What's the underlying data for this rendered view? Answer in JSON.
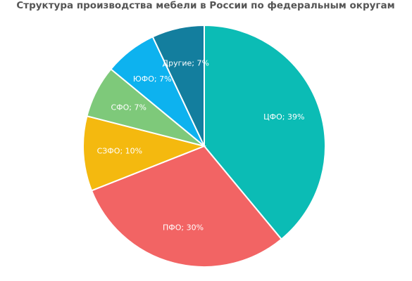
{
  "chart_data": {
    "type": "pie",
    "title": "Структура производства мебели в России по федеральным округам",
    "values": [
      39,
      30,
      10,
      7,
      7,
      7
    ],
    "value_labels": [
      "ЦФО; 39%",
      "ПФО; 30%",
      "СЗФО; 10%",
      "СФО; 7%",
      "ЮФО; 7%",
      "Другие; 7%"
    ],
    "colors": [
      "#0bbcb5",
      "#f26464",
      "#f4b90f",
      "#7ec97a",
      "#0db2ef",
      "#137e9e"
    ]
  }
}
